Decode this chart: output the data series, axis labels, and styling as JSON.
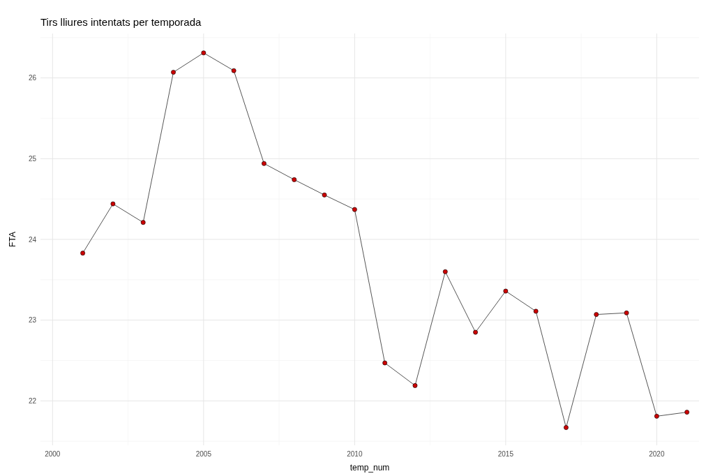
{
  "chart_data": {
    "type": "line",
    "title": "Tirs lliures intentats per temporada",
    "xlabel": "temp_num",
    "ylabel": "FTA",
    "x": [
      2001,
      2002,
      2003,
      2004,
      2005,
      2006,
      2007,
      2008,
      2009,
      2010,
      2011,
      2012,
      2013,
      2014,
      2015,
      2016,
      2017,
      2018,
      2019,
      2020,
      2021
    ],
    "series": [
      {
        "color": "#555555",
        "values": [
          23.83,
          24.44,
          24.21,
          26.07,
          26.31,
          26.09,
          24.94,
          24.74,
          24.55,
          24.37,
          22.47,
          22.19,
          23.6,
          22.85,
          23.36,
          23.11,
          21.67,
          23.07,
          23.09,
          21.81,
          21.86
        ]
      }
    ],
    "marker": "circle",
    "xlim": [
      1999.6,
      2021.4
    ],
    "xticks": [
      2000,
      2005,
      2010,
      2015,
      2020
    ],
    "ylim": [
      21.45,
      26.55
    ],
    "yticks": [
      22,
      23,
      24,
      25,
      26
    ],
    "grid": true
  }
}
